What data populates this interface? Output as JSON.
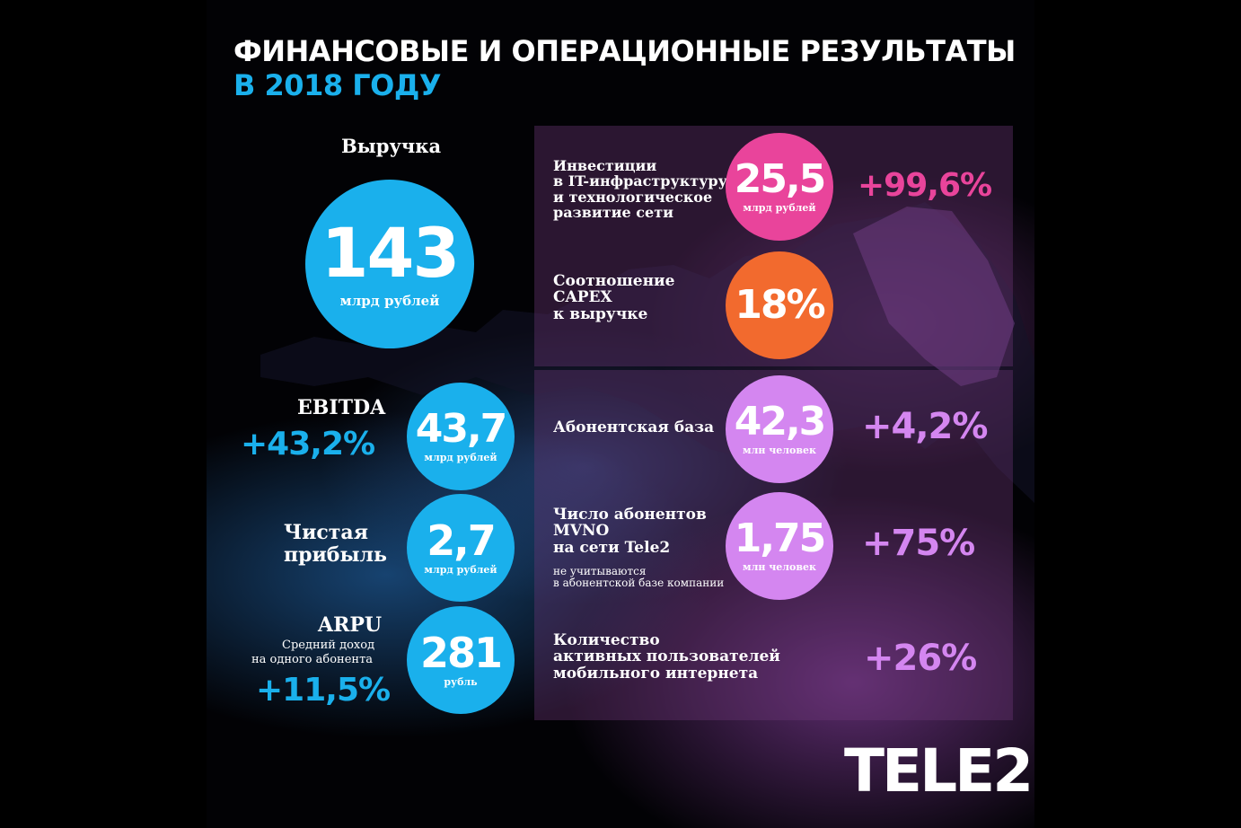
{
  "title": {
    "line1": "ФИНАНСОВЫЕ И ОПЕРАЦИОННЫЕ РЕЗУЛЬТАТЫ",
    "line2": "В 2018 ГОДУ"
  },
  "revenue": {
    "label": "Выручка",
    "value": "143",
    "unit": "млрд рублей"
  },
  "ebitda": {
    "label": "EBITDA",
    "change": "+43,2%",
    "value": "43,7",
    "unit": "млрд рублей"
  },
  "net_profit": {
    "label_line1": "Чистая",
    "label_line2": "прибыль",
    "value": "2,7",
    "unit": "млрд рублей"
  },
  "arpu": {
    "label": "ARPU",
    "sub_line1": "Средний доход",
    "sub_line2": "на одного абонента",
    "change": "+11,5%",
    "value": "281",
    "unit": "рубль"
  },
  "investments": {
    "label_lines": [
      "Инвестиции",
      "в IT-инфраструктуру",
      "и технологическое",
      "развитие сети"
    ],
    "value": "25,5",
    "unit": "млрд рублей",
    "change": "+99,6%"
  },
  "capex": {
    "label_lines": [
      "Соотношение",
      "CAPEX",
      "к выручке"
    ],
    "value": "18%"
  },
  "subscribers": {
    "label": "Абонентская база",
    "value": "42,3",
    "unit": "млн человек",
    "change": "+4,2%"
  },
  "mvno": {
    "label_lines": [
      "Число абонентов",
      "MVNO",
      "на сети Tele2"
    ],
    "note_lines": [
      "не учитываются",
      "в абонентской базе компании"
    ],
    "value": "1,75",
    "unit": "млн человек",
    "change": "+75%"
  },
  "mobile_internet": {
    "label_lines": [
      "Количество",
      "активных пользователей",
      "мобильного интернета"
    ],
    "change": "+26%"
  },
  "logo": {
    "text": "TELE2"
  },
  "colors": {
    "blue": "#1ab0ec",
    "pink": "#e9449b",
    "orange": "#f26a2e",
    "lilac": "#d486f0"
  }
}
